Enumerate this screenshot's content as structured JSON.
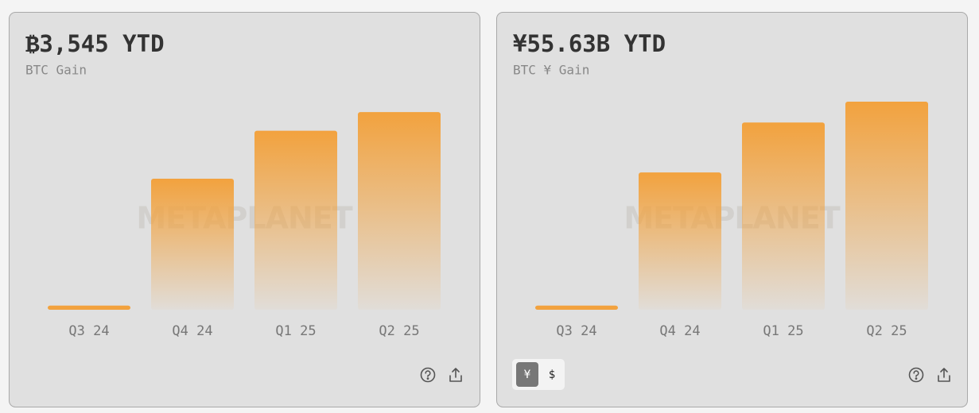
{
  "chart_data": [
    {
      "type": "bar",
      "title": "₿3,545 YTD",
      "subtitle": "BTC Gain",
      "watermark": "METAPLANET",
      "categories": [
        "Q3 24",
        "Q4 24",
        "Q1 25",
        "Q2 25"
      ],
      "values": [
        2,
        63,
        86,
        95
      ],
      "color": "#f2a23e",
      "ylim": [
        0,
        100
      ]
    },
    {
      "type": "bar",
      "title": "¥55.63B YTD",
      "subtitle": "BTC ¥ Gain",
      "watermark": "METAPLANET",
      "categories": [
        "Q3 24",
        "Q4 24",
        "Q1 25",
        "Q2 25"
      ],
      "values": [
        2,
        66,
        90,
        100
      ],
      "color": "#f2a23e",
      "ylim": [
        0,
        100
      ]
    }
  ],
  "currency_toggle": [
    "¥",
    "$"
  ]
}
